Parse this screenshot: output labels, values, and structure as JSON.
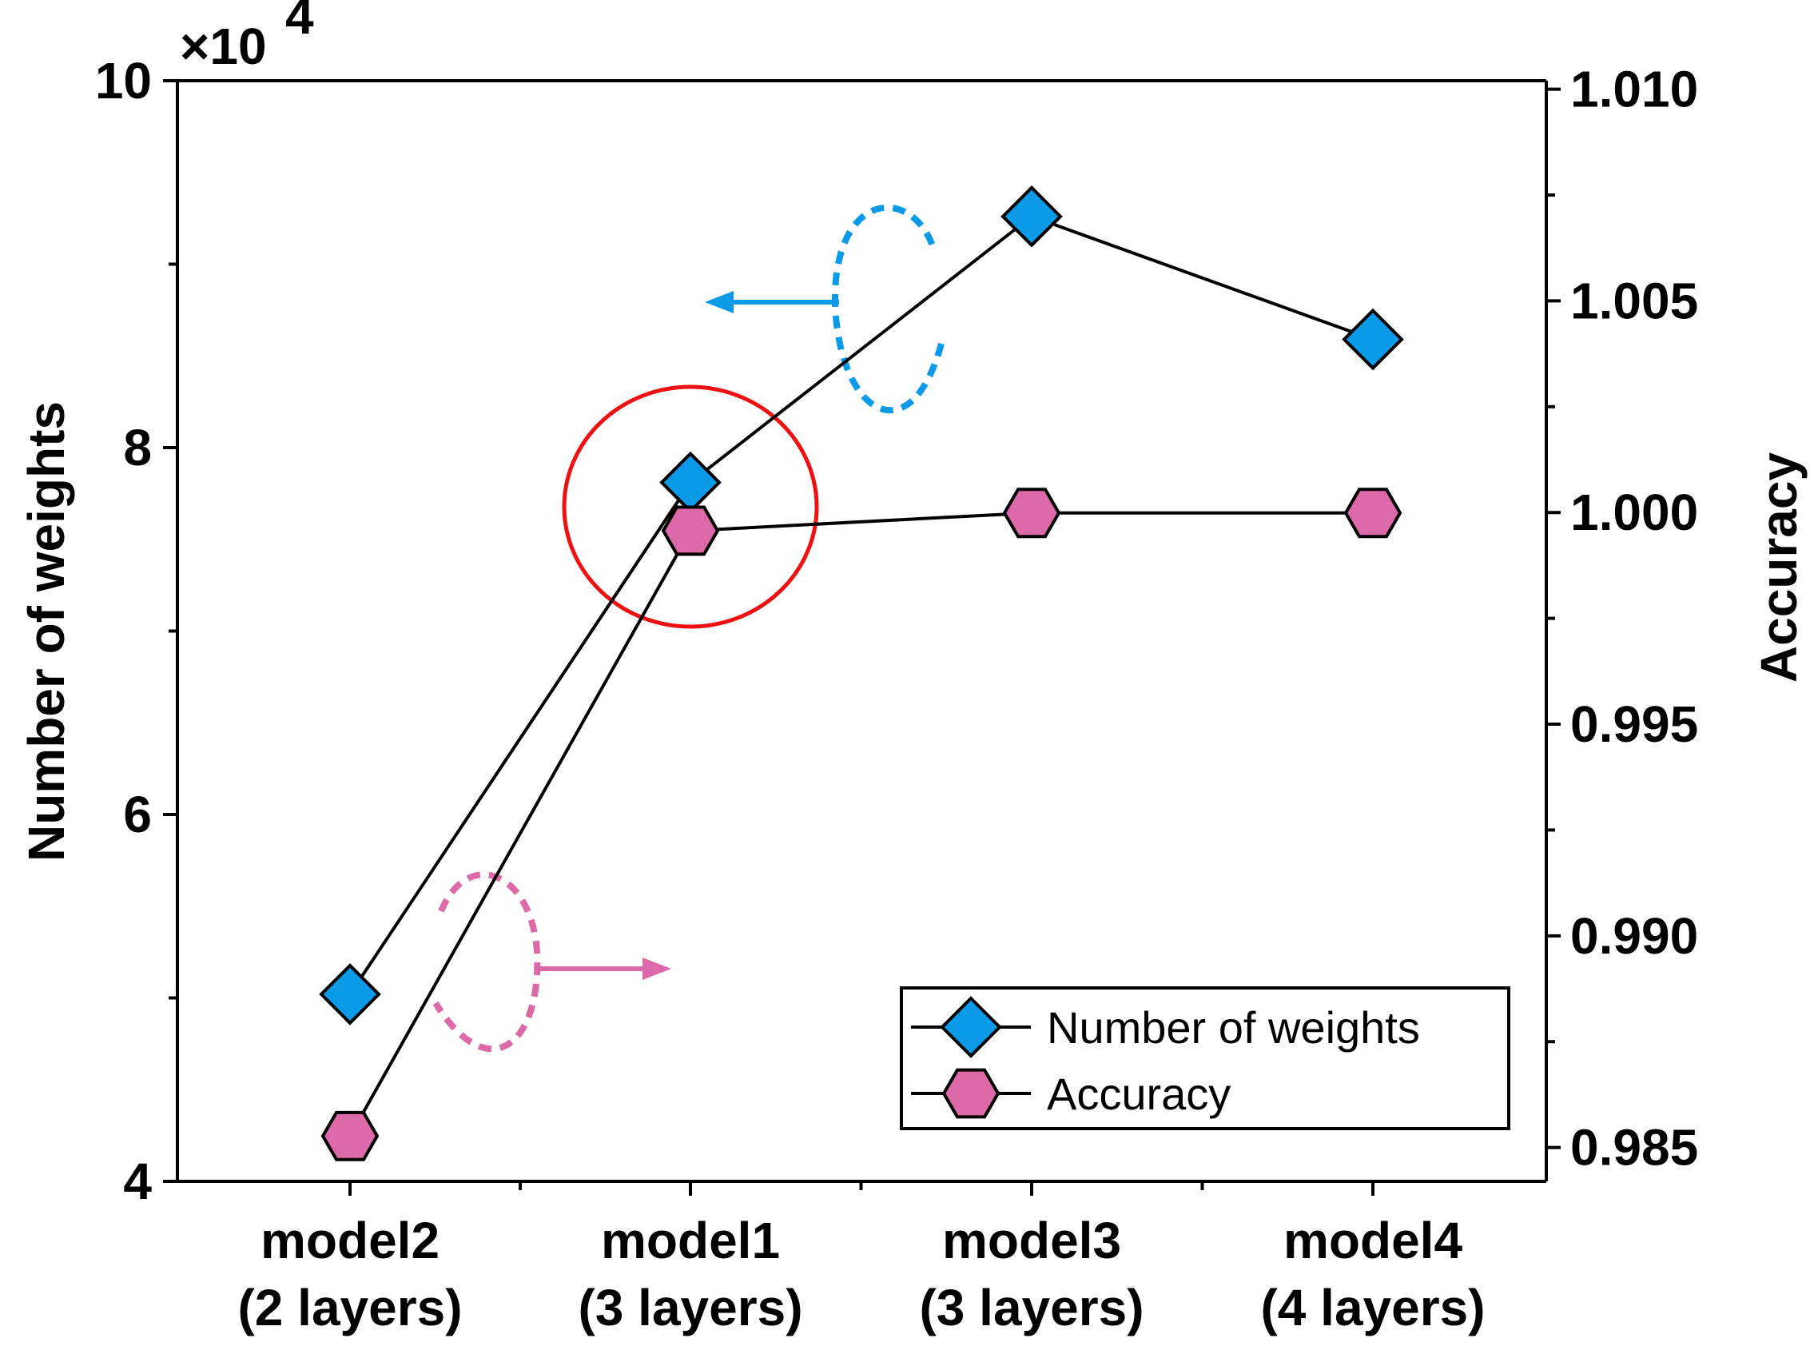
{
  "chart_data": {
    "type": "line",
    "categories": [
      {
        "name": "model2",
        "sub": "(2 layers)",
        "highlight": false
      },
      {
        "name": "model1",
        "sub": "(3 layers)",
        "highlight": true
      },
      {
        "name": "model3",
        "sub": "(3 layers)",
        "highlight": false
      },
      {
        "name": "model4",
        "sub": "(4 layers)",
        "highlight": false
      }
    ],
    "series": [
      {
        "name": "Number of weights",
        "axis": "left",
        "marker": "diamond",
        "color": "#0a9ae8",
        "values": [
          50200,
          78100,
          92600,
          85900
        ]
      },
      {
        "name": "Accuracy",
        "axis": "right",
        "marker": "hexagon",
        "color": "#dd6aa8",
        "values": [
          0.98527,
          0.99957,
          0.99999,
          0.99999
        ]
      }
    ],
    "left_axis": {
      "label": "Number of weights",
      "multiplier_base": "×10",
      "multiplier_exp": "4",
      "ylim": [
        40000,
        100000
      ],
      "ticks": [
        4,
        6,
        8,
        10
      ]
    },
    "right_axis": {
      "label": "Accuracy",
      "ylim": [
        0.9842,
        1.0102
      ],
      "ticks": [
        "0.985",
        "0.990",
        "0.995",
        "1.000",
        "1.005",
        "1.010"
      ]
    },
    "legend": {
      "position": "bottom-right",
      "entries": [
        "Number of weights",
        "Accuracy"
      ]
    },
    "annotations": [
      "red circle highlighting model1",
      "blue dashed ellipse with arrow pointing to left axis",
      "pink dashed ellipse with arrow pointing to right axis"
    ],
    "colors": {
      "highlight": "#ee1111",
      "weights": "#0a9ae8",
      "accuracy": "#dd6aa8"
    }
  }
}
